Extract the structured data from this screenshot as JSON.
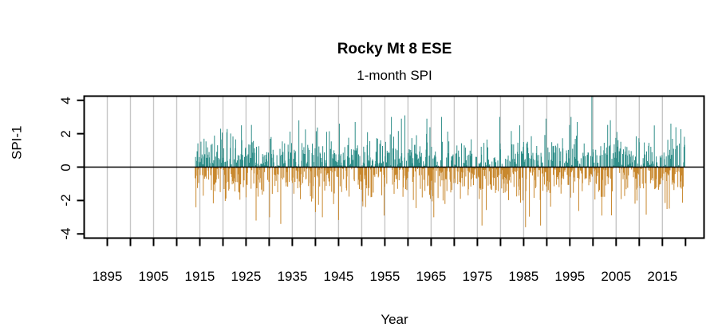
{
  "chart_data": {
    "type": "bar",
    "title": "Rocky Mt 8 ESE",
    "subtitle": "1-month SPI",
    "xlabel": "Year",
    "ylabel": "SPI-1",
    "xlim": [
      1890,
      2024
    ],
    "ylim": [
      -4.25,
      4.25
    ],
    "y_ticks": [
      -4,
      -2,
      0,
      2,
      4
    ],
    "y_tick_labels": [
      "-4",
      "-2",
      "0",
      "2",
      "4"
    ],
    "x_minor_ticks": [
      1895,
      1900,
      1905,
      1910,
      1915,
      1920,
      1925,
      1930,
      1935,
      1940,
      1945,
      1950,
      1955,
      1960,
      1965,
      1970,
      1975,
      1980,
      1985,
      1990,
      1995,
      2000,
      2005,
      2010,
      2015,
      2020
    ],
    "x_labeled_ticks": [
      1895,
      1905,
      1915,
      1925,
      1935,
      1945,
      1955,
      1965,
      1975,
      1985,
      1995,
      2005,
      2015
    ],
    "x_tick_labels": [
      "1895",
      "1905",
      "1915",
      "1925",
      "1935",
      "1945",
      "1955",
      "1965",
      "1975",
      "1985",
      "1995",
      "2005",
      "2015"
    ],
    "grid_years_start": 1895,
    "grid_years_end": 2015,
    "grid_years_step": 5,
    "grid_color": "#c6c6c6",
    "axis_color": "#000000",
    "background_color": "#ffffff",
    "zero_line": true,
    "legend": "none",
    "series": {
      "name": "1-month SPI (monthly)",
      "frequency": "monthly",
      "start_year": 1914.0,
      "end_year": 2019.83,
      "positive_color": "#2F8E89",
      "negative_color": "#C8882E",
      "noise_sd": 1.0,
      "noise_clamp": [
        -3.3,
        3.0
      ],
      "seed": 19141999,
      "notable_values": [
        {
          "year": 1919.5,
          "value": 2.3
        },
        {
          "year": 1924.0,
          "value": 2.5
        },
        {
          "year": 1927.2,
          "value": -3.2
        },
        {
          "year": 1930.1,
          "value": -3.0
        },
        {
          "year": 1932.5,
          "value": -3.4
        },
        {
          "year": 1936.4,
          "value": 2.8
        },
        {
          "year": 1941.5,
          "value": -3.0
        },
        {
          "year": 1945.2,
          "value": 2.6
        },
        {
          "year": 1948.6,
          "value": 2.7
        },
        {
          "year": 1954.8,
          "value": -2.9
        },
        {
          "year": 1958.6,
          "value": 2.9
        },
        {
          "year": 1959.3,
          "value": 3.1
        },
        {
          "year": 1964.1,
          "value": 2.9
        },
        {
          "year": 1965.6,
          "value": -3.0
        },
        {
          "year": 1976.0,
          "value": -3.5
        },
        {
          "year": 1985.4,
          "value": -3.6
        },
        {
          "year": 1988.7,
          "value": -3.5
        },
        {
          "year": 1989.8,
          "value": 2.9
        },
        {
          "year": 1996.6,
          "value": 2.7
        },
        {
          "year": 1999.75,
          "value": 4.4,
          "note": "spike reaches top of plot"
        },
        {
          "year": 2001.9,
          "value": -2.9
        },
        {
          "year": 2011.5,
          "value": -2.85
        },
        {
          "year": 2016.8,
          "value": 2.6
        }
      ]
    }
  }
}
